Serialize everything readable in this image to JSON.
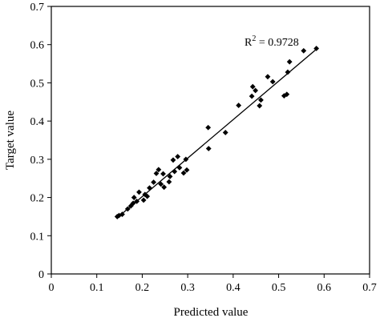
{
  "chart_data": {
    "type": "scatter",
    "title": "",
    "xlabel": "Predicted value",
    "ylabel": "Target value",
    "xlim": [
      0,
      0.7
    ],
    "ylim": [
      0,
      0.7
    ],
    "xticks": [
      "0",
      "0.1",
      "0.2",
      "0.3",
      "0.4",
      "0.5",
      "0.6",
      "0.7"
    ],
    "yticks": [
      "0",
      "0.1",
      "0.2",
      "0.3",
      "0.4",
      "0.5",
      "0.6",
      "0.7"
    ],
    "grid": false,
    "marker": "diamond",
    "color": "#000000",
    "annotation": {
      "prefix": "R",
      "superscript": "2",
      "text": " = 0.9728"
    },
    "fit_line": {
      "x": [
        0.145,
        0.585
      ],
      "y": [
        0.147,
        0.59
      ]
    },
    "points": [
      [
        0.145,
        0.15
      ],
      [
        0.149,
        0.153
      ],
      [
        0.156,
        0.156
      ],
      [
        0.168,
        0.17
      ],
      [
        0.175,
        0.178
      ],
      [
        0.18,
        0.185
      ],
      [
        0.182,
        0.2
      ],
      [
        0.188,
        0.19
      ],
      [
        0.193,
        0.214
      ],
      [
        0.203,
        0.193
      ],
      [
        0.206,
        0.208
      ],
      [
        0.211,
        0.203
      ],
      [
        0.216,
        0.225
      ],
      [
        0.225,
        0.24
      ],
      [
        0.231,
        0.263
      ],
      [
        0.236,
        0.273
      ],
      [
        0.241,
        0.235
      ],
      [
        0.246,
        0.262
      ],
      [
        0.248,
        0.227
      ],
      [
        0.259,
        0.241
      ],
      [
        0.261,
        0.255
      ],
      [
        0.268,
        0.298
      ],
      [
        0.271,
        0.268
      ],
      [
        0.278,
        0.307
      ],
      [
        0.282,
        0.278
      ],
      [
        0.291,
        0.264
      ],
      [
        0.296,
        0.3
      ],
      [
        0.298,
        0.272
      ],
      [
        0.345,
        0.383
      ],
      [
        0.346,
        0.328
      ],
      [
        0.383,
        0.37
      ],
      [
        0.412,
        0.441
      ],
      [
        0.441,
        0.465
      ],
      [
        0.443,
        0.49
      ],
      [
        0.449,
        0.48
      ],
      [
        0.458,
        0.44
      ],
      [
        0.461,
        0.455
      ],
      [
        0.476,
        0.516
      ],
      [
        0.487,
        0.503
      ],
      [
        0.512,
        0.466
      ],
      [
        0.518,
        0.47
      ],
      [
        0.52,
        0.528
      ],
      [
        0.524,
        0.555
      ],
      [
        0.555,
        0.584
      ],
      [
        0.583,
        0.59
      ]
    ]
  }
}
